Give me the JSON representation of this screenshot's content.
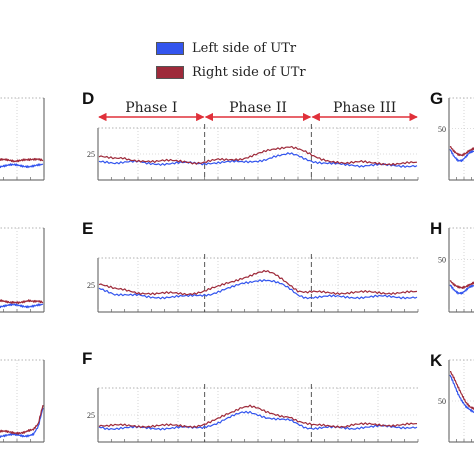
{
  "legend": [
    {
      "label": "Left side of UTr",
      "color": "#3355ee"
    },
    {
      "label": "Right side of UTr",
      "color": "#9e2a3a"
    }
  ],
  "panel_letters": [
    "D",
    "E",
    "F",
    "G",
    "H",
    "K"
  ],
  "phases": [
    "Phase I",
    "Phase II",
    "Phase III"
  ],
  "arrow_color": "#e0303a",
  "chart_data": [
    {
      "type": "line",
      "panel": "D",
      "ytick": "25",
      "series": [
        {
          "name": "Left side of UTr",
          "color": "#3355ee",
          "values": [
            18,
            18,
            17,
            17,
            17,
            17,
            16,
            16,
            16,
            16,
            16,
            16,
            16,
            16,
            17,
            17,
            17,
            17,
            17,
            18,
            19,
            20,
            22,
            23,
            25,
            24,
            21,
            18,
            16,
            15,
            15,
            15,
            15,
            14,
            14,
            14,
            14,
            14,
            14,
            14,
            14
          ]
        },
        {
          "name": "Right side of UTr",
          "color": "#9e2a3a",
          "values": [
            24,
            22,
            20,
            20,
            19,
            19,
            19,
            18,
            18,
            18,
            18,
            18,
            17,
            17,
            18,
            19,
            19,
            20,
            21,
            23,
            25,
            27,
            29,
            31,
            33,
            31,
            27,
            22,
            19,
            18,
            18,
            17,
            17,
            17,
            16,
            16,
            16,
            16,
            16,
            16,
            16
          ]
        }
      ]
    },
    {
      "type": "line",
      "panel": "E",
      "ytick": "25",
      "series": [
        {
          "name": "Left side of UTr",
          "color": "#3355ee",
          "values": [
            22,
            20,
            17,
            16,
            15,
            15,
            14,
            14,
            14,
            14,
            14,
            14,
            15,
            16,
            17,
            19,
            21,
            23,
            26,
            28,
            30,
            30,
            28,
            25,
            21,
            16,
            14,
            14,
            14,
            14,
            14,
            14,
            14,
            14,
            14,
            14,
            14,
            14,
            14,
            14,
            14
          ]
        },
        {
          "name": "Right side of UTr",
          "color": "#9e2a3a",
          "values": [
            27,
            24,
            21,
            20,
            19,
            18,
            18,
            17,
            17,
            17,
            17,
            17,
            18,
            19,
            21,
            23,
            26,
            29,
            32,
            34,
            36,
            37,
            35,
            31,
            26,
            20,
            18,
            18,
            18,
            18,
            18,
            18,
            18,
            18,
            18,
            18,
            18,
            18,
            18,
            18,
            18
          ]
        }
      ]
    },
    {
      "type": "line",
      "panel": "F",
      "ytick": "25",
      "series": [
        {
          "name": "Left side of UTr",
          "color": "#3355ee",
          "values": [
            14,
            13,
            13,
            13,
            13,
            13,
            13,
            13,
            13,
            13,
            13,
            13,
            13,
            14,
            16,
            18,
            21,
            24,
            27,
            28,
            26,
            23,
            21,
            20,
            20,
            17,
            14,
            13,
            13,
            13,
            13,
            13,
            13,
            14,
            14,
            14,
            14,
            14,
            14,
            14,
            14
          ]
        },
        {
          "name": "Right side of UTr",
          "color": "#9e2a3a",
          "values": [
            16,
            15,
            15,
            15,
            15,
            15,
            15,
            15,
            15,
            15,
            15,
            15,
            15,
            16,
            18,
            21,
            25,
            29,
            33,
            34,
            31,
            27,
            25,
            24,
            24,
            20,
            17,
            15,
            15,
            15,
            15,
            15,
            16,
            16,
            16,
            16,
            16,
            16,
            16,
            16,
            16
          ]
        }
      ]
    },
    {
      "type": "line",
      "panel": "G",
      "ytick": "50",
      "series": [
        {
          "name": "Left side of UTr",
          "color": "#3355ee",
          "values": [
            30,
            24,
            20,
            19,
            22,
            26,
            28,
            29
          ]
        },
        {
          "name": "Right side of UTr",
          "color": "#9e2a3a",
          "values": [
            34,
            28,
            24,
            23,
            26,
            30,
            32,
            33
          ]
        }
      ]
    },
    {
      "type": "line",
      "panel": "H",
      "ytick": "50",
      "series": [
        {
          "name": "Left side of UTr",
          "color": "#3355ee",
          "values": [
            26,
            22,
            19,
            18,
            20,
            23,
            25,
            24
          ]
        },
        {
          "name": "Right side of UTr",
          "color": "#9e2a3a",
          "values": [
            31,
            26,
            23,
            22,
            24,
            27,
            29,
            28
          ]
        }
      ]
    },
    {
      "type": "line",
      "panel": "K",
      "ytick": "50",
      "series": [
        {
          "name": "Left side of UTr",
          "color": "#3355ee",
          "values": [
            82,
            72,
            60,
            50,
            42,
            38,
            36,
            35
          ]
        },
        {
          "name": "Right side of UTr",
          "color": "#9e2a3a",
          "values": [
            88,
            78,
            66,
            56,
            48,
            44,
            42,
            41
          ]
        }
      ]
    },
    {
      "type": "line",
      "panel": "left-1",
      "series": [
        {
          "name": "Left side of UTr",
          "color": "#3355ee",
          "values": [
            14,
            14,
            14,
            14,
            14,
            14,
            14,
            14,
            14,
            14,
            14,
            14
          ]
        },
        {
          "name": "Right side of UTr",
          "color": "#9e2a3a",
          "values": [
            20,
            20,
            19,
            19,
            19,
            19,
            20,
            20,
            19,
            19,
            20,
            20
          ]
        }
      ]
    },
    {
      "type": "line",
      "panel": "left-2",
      "series": [
        {
          "name": "Left side of UTr",
          "color": "#3355ee",
          "values": [
            6,
            6,
            6,
            6,
            6,
            6,
            6,
            6,
            6,
            6,
            6,
            6
          ]
        },
        {
          "name": "Right side of UTr",
          "color": "#9e2a3a",
          "values": [
            10,
            10,
            10,
            9,
            9,
            10,
            10,
            10,
            10,
            9,
            10,
            10
          ]
        }
      ]
    },
    {
      "type": "line",
      "panel": "left-3",
      "series": [
        {
          "name": "Left side of UTr",
          "color": "#3355ee",
          "values": [
            8,
            8,
            8,
            8,
            8,
            8,
            8,
            8,
            9,
            10,
            18,
            40
          ]
        },
        {
          "name": "Right side of UTr",
          "color": "#9e2a3a",
          "values": [
            12,
            12,
            12,
            12,
            12,
            12,
            12,
            12,
            13,
            14,
            22,
            46
          ]
        }
      ]
    }
  ]
}
